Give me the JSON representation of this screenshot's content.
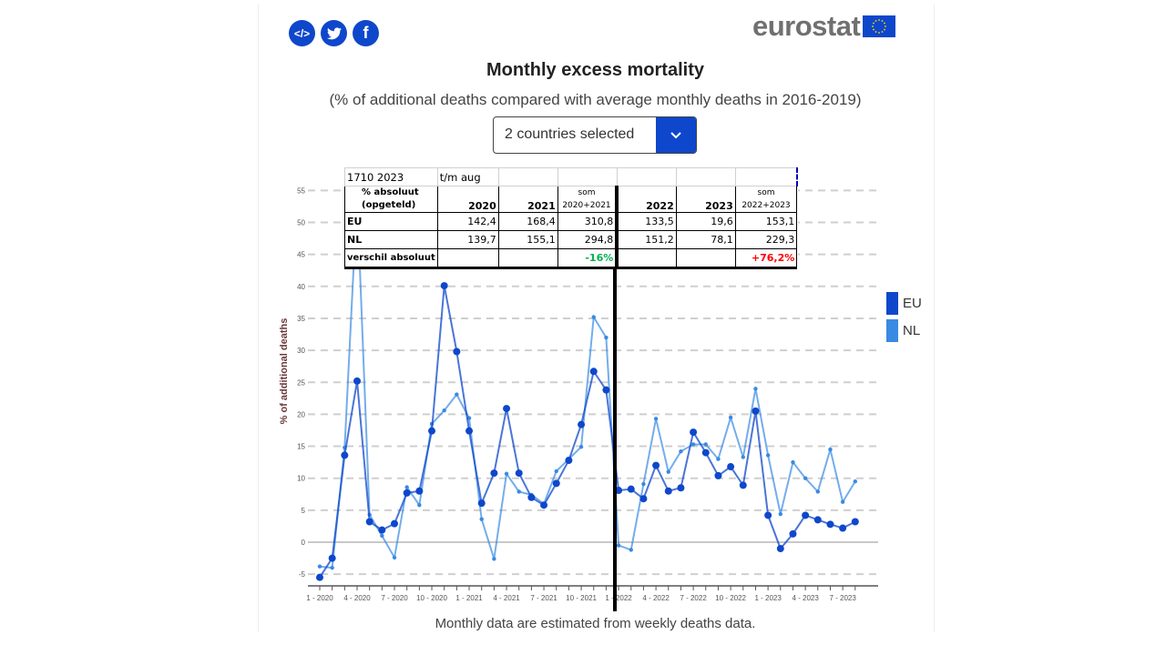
{
  "share": {
    "embed_icon": "code-embed-icon",
    "twitter_icon": "twitter-icon",
    "facebook_icon": "facebook-icon"
  },
  "logo": {
    "text": "eurostat",
    "flag_icon": "eu-flag-icon"
  },
  "dropdown": {
    "label": "2 countries selected",
    "icon": "chevron-down-icon"
  },
  "note": "Monthly data are estimated from weekly deaths data.",
  "overlay_table": {
    "top_row": [
      "1710 2023",
      "t/m aug",
      "",
      "",
      "",
      "",
      ""
    ],
    "header": {
      "label": "% absoluut (opgeteld)",
      "label_line1": "% absoluut",
      "label_line2": "(opgeteld)",
      "cols": [
        "2020",
        "2021",
        "som 2020+2021",
        "2022",
        "2023",
        "som 2022+2023"
      ],
      "som1_line1": "som",
      "som1_line2": "2020+2021",
      "som2_line1": "som",
      "som2_line2": "2022+2023"
    },
    "rows": [
      {
        "label": "EU",
        "values": [
          "142,4",
          "168,4",
          "310,8",
          "133,5",
          "19,6",
          "153,1"
        ]
      },
      {
        "label": "NL",
        "values": [
          "139,7",
          "155,1",
          "294,8",
          "151,2",
          "78,1",
          "229,3"
        ]
      }
    ],
    "diff_row": {
      "label": "verschil absoluut",
      "diff1": "-16%",
      "diff2": "+76,2%"
    },
    "colors": {
      "positive": "#00b050",
      "negative": "#ff0000"
    }
  },
  "chart_data": {
    "type": "line",
    "title": "Monthly excess mortality",
    "subtitle": "(% of additional deaths compared with average monthly deaths in 2016-2019)",
    "xlabel": "",
    "ylabel": "% of additional deaths",
    "ylim": [
      -5,
      55
    ],
    "yticks": [
      -5,
      0,
      5,
      10,
      15,
      20,
      25,
      30,
      35,
      40,
      45,
      50,
      55
    ],
    "grid": true,
    "legend_position": "right",
    "x": [
      "1-2020",
      "2-2020",
      "3-2020",
      "4-2020",
      "5-2020",
      "6-2020",
      "7-2020",
      "8-2020",
      "9-2020",
      "10-2020",
      "11-2020",
      "12-2020",
      "1-2021",
      "2-2021",
      "3-2021",
      "4-2021",
      "5-2021",
      "6-2021",
      "7-2021",
      "8-2021",
      "9-2021",
      "10-2021",
      "11-2021",
      "12-2021",
      "1-2022",
      "2-2022",
      "3-2022",
      "4-2022",
      "5-2022",
      "6-2022",
      "7-2022",
      "8-2022",
      "9-2022",
      "10-2022",
      "11-2022",
      "12-2022",
      "1-2023",
      "2-2023",
      "3-2023",
      "4-2023",
      "5-2023",
      "6-2023",
      "7-2023",
      "8-2023"
    ],
    "xtick_labels": [
      "1 - 2020",
      "4 - 2020",
      "7 - 2020",
      "10 - 2020",
      "1 - 2021",
      "4 - 2021",
      "7 - 2021",
      "10 - 2021",
      "1 - 2022",
      "4 - 2022",
      "7 - 2022",
      "10 - 2022",
      "1 - 2023",
      "4 - 2023",
      "7 - 2023"
    ],
    "series": [
      {
        "name": "EU",
        "color": "#0e47cb",
        "values": [
          -5.5,
          -2.5,
          13.6,
          25.2,
          3.2,
          1.9,
          2.9,
          7.7,
          8.0,
          17.4,
          40.1,
          29.8,
          17.4,
          6.1,
          10.8,
          20.9,
          10.8,
          7.0,
          5.8,
          9.2,
          12.8,
          18.4,
          26.7,
          23.8,
          8.1,
          8.3,
          6.8,
          12.0,
          8.0,
          8.5,
          17.2,
          14.0,
          10.4,
          11.8,
          8.9,
          20.5,
          4.2,
          -1.0,
          1.3,
          4.2,
          3.5,
          2.8,
          2.2,
          3.2
        ]
      },
      {
        "name": "NL",
        "color": "#388ae2",
        "values": [
          -3.8,
          -4.0,
          14.8,
          53.9,
          4.3,
          1.0,
          -2.4,
          8.6,
          5.8,
          18.5,
          20.6,
          23.1,
          19.4,
          3.6,
          -2.6,
          10.7,
          7.9,
          7.4,
          6.0,
          11.1,
          13.0,
          14.9,
          35.2,
          32.0,
          -0.5,
          -1.2,
          9.1,
          19.3,
          11.0,
          14.2,
          15.3,
          15.3,
          13.0,
          19.5,
          13.3,
          24.0,
          13.6,
          4.4,
          12.5,
          10.0,
          7.9,
          14.5,
          6.3,
          9.5
        ]
      }
    ],
    "annotation": "vertical divider between 12-2021 and 1-2022"
  }
}
